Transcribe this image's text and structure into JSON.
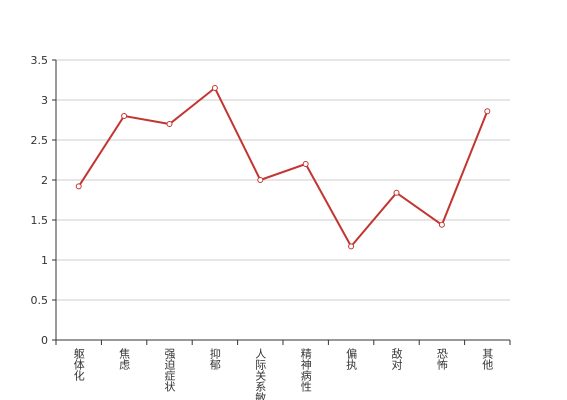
{
  "chart_data": {
    "type": "line",
    "categories": [
      "躯体化",
      "焦虑",
      "强迫症状",
      "抑郁",
      "人际关系敏感",
      "精神病性",
      "偏执",
      "敌对",
      "恐怖",
      "其他"
    ],
    "values": [
      1.92,
      2.8,
      2.7,
      3.15,
      2.0,
      2.2,
      1.17,
      1.84,
      1.44,
      2.86
    ],
    "color": "#c23531",
    "ylim": [
      0,
      3.5
    ],
    "yticks": [
      0,
      0.5,
      1,
      1.5,
      2,
      2.5,
      3,
      3.5
    ],
    "grid": true
  }
}
